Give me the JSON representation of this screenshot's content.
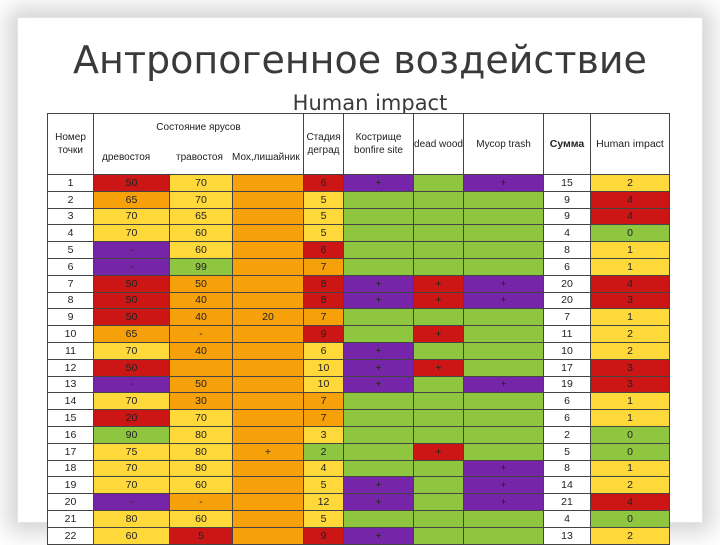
{
  "title": "Антропогенное воздействие",
  "subtitle": "Human impact",
  "headers": {
    "point_no": "Номер точки",
    "layers": "Состояние ярусов",
    "tree": "древостоя",
    "grass": "травостоя",
    "moss": "Мох,лишайник",
    "stage": "Стадия деград",
    "bonfire": "Кострище bonfire site",
    "deadwood": "dead wood",
    "trash": "Мусор trash",
    "sum": "Сумма",
    "impact": "Human impact"
  },
  "colors": {
    "red": "#cc1616",
    "orange": "#f6a10a",
    "yellow": "#ffd93a",
    "green": "#8ec63f",
    "purple": "#7725a8",
    "white": "#ffffff"
  },
  "rows": [
    {
      "n": "1",
      "tree": "50",
      "tree_c": "r",
      "grass": "70",
      "grass_c": "y",
      "moss": "",
      "moss_c": "o",
      "stage": "6",
      "stage_c": "r",
      "bonfire": "+",
      "bonfire_c": "p",
      "dead": "",
      "dead_c": "g",
      "trash": "+",
      "trash_c": "p",
      "sum": "15",
      "impact": "2",
      "impact_c": "y"
    },
    {
      "n": "2",
      "tree": "65",
      "tree_c": "o",
      "grass": "70",
      "grass_c": "y",
      "moss": "",
      "moss_c": "o",
      "stage": "5",
      "stage_c": "y",
      "bonfire": "",
      "bonfire_c": "g",
      "dead": "",
      "dead_c": "g",
      "trash": "",
      "trash_c": "g",
      "sum": "9",
      "impact": "4",
      "impact_c": "r"
    },
    {
      "n": "3",
      "tree": "70",
      "tree_c": "y",
      "grass": "65",
      "grass_c": "y",
      "moss": "",
      "moss_c": "o",
      "stage": "5",
      "stage_c": "y",
      "bonfire": "",
      "bonfire_c": "g",
      "dead": "",
      "dead_c": "g",
      "trash": "",
      "trash_c": "g",
      "sum": "9",
      "impact": "4",
      "impact_c": "r"
    },
    {
      "n": "4",
      "tree": "70",
      "tree_c": "y",
      "grass": "60",
      "grass_c": "y",
      "moss": "",
      "moss_c": "o",
      "stage": "5",
      "stage_c": "y",
      "bonfire": "",
      "bonfire_c": "g",
      "dead": "",
      "dead_c": "g",
      "trash": "",
      "trash_c": "g",
      "sum": "4",
      "impact": "0",
      "impact_c": "g"
    },
    {
      "n": "5",
      "tree": "-",
      "tree_c": "p",
      "grass": "60",
      "grass_c": "y",
      "moss": "",
      "moss_c": "o",
      "stage": "6",
      "stage_c": "r",
      "bonfire": "",
      "bonfire_c": "g",
      "dead": "",
      "dead_c": "g",
      "trash": "",
      "trash_c": "g",
      "sum": "8",
      "impact": "1",
      "impact_c": "y"
    },
    {
      "n": "6",
      "tree": "-",
      "tree_c": "p",
      "grass": "99",
      "grass_c": "g",
      "moss": "",
      "moss_c": "o",
      "stage": "7",
      "stage_c": "o",
      "bonfire": "",
      "bonfire_c": "g",
      "dead": "",
      "dead_c": "g",
      "trash": "",
      "trash_c": "g",
      "sum": "6",
      "impact": "1",
      "impact_c": "y"
    },
    {
      "n": "7",
      "tree": "50",
      "tree_c": "r",
      "grass": "50",
      "grass_c": "o",
      "moss": "",
      "moss_c": "o",
      "stage": "8",
      "stage_c": "r",
      "bonfire": "+",
      "bonfire_c": "p",
      "dead": "+",
      "dead_c": "r",
      "trash": "+",
      "trash_c": "p",
      "sum": "20",
      "impact": "4",
      "impact_c": "r"
    },
    {
      "n": "8",
      "tree": "50",
      "tree_c": "r",
      "grass": "40",
      "grass_c": "o",
      "moss": "",
      "moss_c": "o",
      "stage": "8",
      "stage_c": "r",
      "bonfire": "+",
      "bonfire_c": "p",
      "dead": "+",
      "dead_c": "r",
      "trash": "+",
      "trash_c": "p",
      "sum": "20",
      "impact": "3",
      "impact_c": "r"
    },
    {
      "n": "9",
      "tree": "50",
      "tree_c": "r",
      "grass": "40",
      "grass_c": "o",
      "moss": "20",
      "moss_c": "o",
      "stage": "7",
      "stage_c": "o",
      "bonfire": "",
      "bonfire_c": "g",
      "dead": "",
      "dead_c": "g",
      "trash": "",
      "trash_c": "g",
      "sum": "7",
      "impact": "1",
      "impact_c": "y"
    },
    {
      "n": "10",
      "tree": "65",
      "tree_c": "o",
      "grass": "-",
      "grass_c": "o",
      "moss": "",
      "moss_c": "o",
      "stage": "9",
      "stage_c": "r",
      "bonfire": "",
      "bonfire_c": "g",
      "dead": "+",
      "dead_c": "r",
      "trash": "",
      "trash_c": "g",
      "sum": "11",
      "impact": "2",
      "impact_c": "y"
    },
    {
      "n": "11",
      "tree": "70",
      "tree_c": "y",
      "grass": "40",
      "grass_c": "o",
      "moss": "",
      "moss_c": "o",
      "stage": "6",
      "stage_c": "y",
      "bonfire": "+",
      "bonfire_c": "p",
      "dead": "",
      "dead_c": "g",
      "trash": "",
      "trash_c": "g",
      "sum": "10",
      "impact": "2",
      "impact_c": "y"
    },
    {
      "n": "12",
      "tree": "50",
      "tree_c": "r",
      "grass": "",
      "grass_c": "o",
      "moss": "",
      "moss_c": "o",
      "stage": "10",
      "stage_c": "y",
      "bonfire": "+",
      "bonfire_c": "p",
      "dead": "+",
      "dead_c": "r",
      "trash": "",
      "trash_c": "g",
      "sum": "17",
      "impact": "3",
      "impact_c": "r"
    },
    {
      "n": "13",
      "tree": "-",
      "tree_c": "p",
      "grass": "50",
      "grass_c": "o",
      "moss": "",
      "moss_c": "o",
      "stage": "10",
      "stage_c": "y",
      "bonfire": "+",
      "bonfire_c": "p",
      "dead": "",
      "dead_c": "g",
      "trash": "+",
      "trash_c": "p",
      "sum": "19",
      "impact": "3",
      "impact_c": "r"
    },
    {
      "n": "14",
      "tree": "70",
      "tree_c": "y",
      "grass": "30",
      "grass_c": "o",
      "moss": "",
      "moss_c": "o",
      "stage": "7",
      "stage_c": "o",
      "bonfire": "",
      "bonfire_c": "g",
      "dead": "",
      "dead_c": "g",
      "trash": "",
      "trash_c": "g",
      "sum": "6",
      "impact": "1",
      "impact_c": "y"
    },
    {
      "n": "15",
      "tree": "20",
      "tree_c": "r",
      "grass": "70",
      "grass_c": "y",
      "moss": "",
      "moss_c": "o",
      "stage": "7",
      "stage_c": "o",
      "bonfire": "",
      "bonfire_c": "g",
      "dead": "",
      "dead_c": "g",
      "trash": "",
      "trash_c": "g",
      "sum": "6",
      "impact": "1",
      "impact_c": "y"
    },
    {
      "n": "16",
      "tree": "90",
      "tree_c": "g",
      "grass": "80",
      "grass_c": "y",
      "moss": "",
      "moss_c": "o",
      "stage": "3",
      "stage_c": "y",
      "bonfire": "",
      "bonfire_c": "g",
      "dead": "",
      "dead_c": "g",
      "trash": "",
      "trash_c": "g",
      "sum": "2",
      "impact": "0",
      "impact_c": "g"
    },
    {
      "n": "17",
      "tree": "75",
      "tree_c": "y",
      "grass": "80",
      "grass_c": "y",
      "moss": "+",
      "moss_c": "o",
      "stage": "2",
      "stage_c": "g",
      "bonfire": "",
      "bonfire_c": "g",
      "dead": "+",
      "dead_c": "r",
      "trash": "",
      "trash_c": "g",
      "sum": "5",
      "impact": "0",
      "impact_c": "g"
    },
    {
      "n": "18",
      "tree": "70",
      "tree_c": "y",
      "grass": "80",
      "grass_c": "y",
      "moss": "",
      "moss_c": "o",
      "stage": "4",
      "stage_c": "y",
      "bonfire": "",
      "bonfire_c": "g",
      "dead": "",
      "dead_c": "g",
      "trash": "+",
      "trash_c": "p",
      "sum": "8",
      "impact": "1",
      "impact_c": "y"
    },
    {
      "n": "19",
      "tree": "70",
      "tree_c": "y",
      "grass": "60",
      "grass_c": "y",
      "moss": "",
      "moss_c": "o",
      "stage": "5",
      "stage_c": "y",
      "bonfire": "+",
      "bonfire_c": "p",
      "dead": "",
      "dead_c": "g",
      "trash": "+",
      "trash_c": "p",
      "sum": "14",
      "impact": "2",
      "impact_c": "y"
    },
    {
      "n": "20",
      "tree": "-",
      "tree_c": "p",
      "grass": "-",
      "grass_c": "o",
      "moss": "",
      "moss_c": "o",
      "stage": "12",
      "stage_c": "y",
      "bonfire": "+",
      "bonfire_c": "p",
      "dead": "",
      "dead_c": "g",
      "trash": "+",
      "trash_c": "p",
      "sum": "21",
      "impact": "4",
      "impact_c": "r"
    },
    {
      "n": "21",
      "tree": "80",
      "tree_c": "y",
      "grass": "60",
      "grass_c": "y",
      "moss": "",
      "moss_c": "o",
      "stage": "5",
      "stage_c": "y",
      "bonfire": "",
      "bonfire_c": "g",
      "dead": "",
      "dead_c": "g",
      "trash": "",
      "trash_c": "g",
      "sum": "4",
      "impact": "0",
      "impact_c": "g"
    },
    {
      "n": "22",
      "tree": "60",
      "tree_c": "y",
      "grass": "5",
      "grass_c": "r",
      "moss": "",
      "moss_c": "o",
      "stage": "9",
      "stage_c": "r",
      "bonfire": "+",
      "bonfire_c": "p",
      "dead": "",
      "dead_c": "g",
      "trash": "",
      "trash_c": "g",
      "sum": "13",
      "impact": "2",
      "impact_c": "y"
    }
  ]
}
